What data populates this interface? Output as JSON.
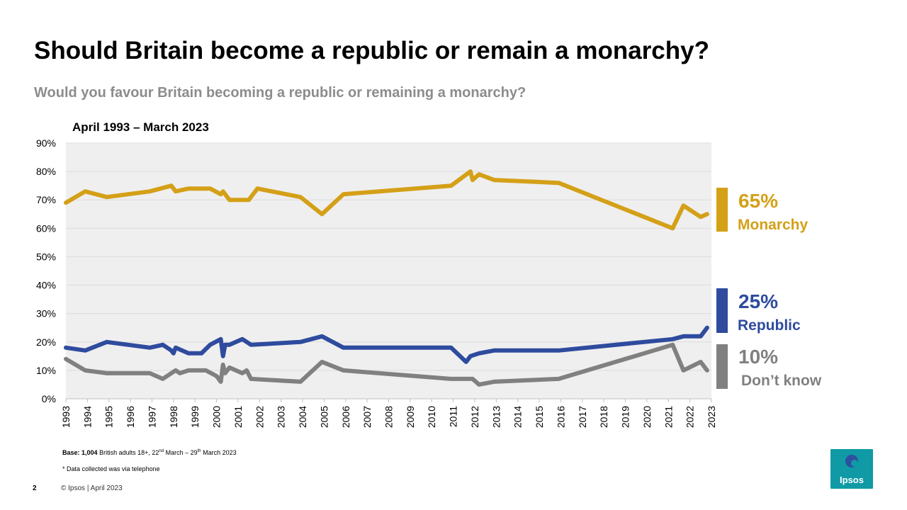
{
  "title": "Should Britain become a republic or remain a monarchy?",
  "subtitle": "Would you favour Britain becoming a republic or remaining a monarchy?",
  "period": "April 1993 – March 2023",
  "colors": {
    "monarchy": "#d4a017",
    "republic": "#2e4b9e",
    "dont_know": "#808080",
    "plot_bg": "#efefef",
    "grid": "#dcdcdc",
    "brand": "#0f9aa5"
  },
  "chart_data": {
    "type": "line",
    "title": "April 1993 – March 2023",
    "xlabel": "",
    "ylabel": "",
    "xlim": [
      1993,
      2023
    ],
    "ylim": [
      0,
      90
    ],
    "y_ticks": [
      0,
      10,
      20,
      30,
      40,
      50,
      60,
      70,
      80,
      90
    ],
    "y_tick_labels": [
      "0%",
      "10%",
      "20%",
      "30%",
      "40%",
      "50%",
      "60%",
      "70%",
      "80%",
      "90%"
    ],
    "x_tick_labels": [
      "1993",
      "1994",
      "1995",
      "1996",
      "1997",
      "1998",
      "1999",
      "2000",
      "2001",
      "2002",
      "2003",
      "2004",
      "2005",
      "2006",
      "2007",
      "2008",
      "2009",
      "2010",
      "2011",
      "2012",
      "2013",
      "2014",
      "2015",
      "2016",
      "2017",
      "2018",
      "2019",
      "2020",
      "2021",
      "2022",
      "2023"
    ],
    "grid": true,
    "series": [
      {
        "name": "Monarchy",
        "color_key": "monarchy",
        "x": [
          1993.0,
          1993.9,
          1994.9,
          1996.9,
          1997.9,
          1998.1,
          1998.7,
          1999.7,
          2000.2,
          2000.3,
          2000.6,
          2001.1,
          2001.5,
          2001.9,
          2003.9,
          2004.9,
          2005.9,
          2010.9,
          2011.8,
          2011.9,
          2012.2,
          2012.9,
          2015.9,
          2021.2,
          2021.7,
          2022.5,
          2022.8
        ],
        "values": [
          69,
          73,
          71,
          73,
          75,
          73,
          74,
          74,
          72,
          73,
          70,
          70,
          70,
          74,
          71,
          65,
          72,
          75,
          80,
          77,
          79,
          77,
          76,
          60,
          68,
          64,
          65
        ]
      },
      {
        "name": "Republic",
        "color_key": "republic",
        "x": [
          1993.0,
          1993.9,
          1994.9,
          1996.9,
          1997.5,
          1997.9,
          1998.0,
          1998.1,
          1998.7,
          1999.3,
          1999.7,
          2000.2,
          2000.3,
          2000.4,
          2000.6,
          2001.2,
          2001.6,
          2003.9,
          2004.9,
          2005.9,
          2010.9,
          2011.6,
          2011.8,
          2012.2,
          2012.9,
          2015.9,
          2021.2,
          2021.7,
          2022.5,
          2022.8
        ],
        "values": [
          18,
          17,
          20,
          18,
          19,
          17,
          16,
          18,
          16,
          16,
          19,
          21,
          15,
          19,
          19,
          21,
          19,
          20,
          22,
          18,
          18,
          13,
          15,
          16,
          17,
          17,
          21,
          22,
          22,
          25
        ]
      },
      {
        "name": "Don't know",
        "color_key": "dont_know",
        "x": [
          1993.0,
          1993.9,
          1994.9,
          1996.9,
          1997.5,
          1998.1,
          1998.3,
          1998.7,
          1999.5,
          2000.0,
          2000.2,
          2000.3,
          2000.4,
          2000.6,
          2001.2,
          2001.4,
          2001.6,
          2003.9,
          2004.9,
          2005.9,
          2010.9,
          2011.9,
          2012.2,
          2012.9,
          2015.9,
          2021.2,
          2021.7,
          2022.5,
          2022.8
        ],
        "values": [
          14,
          10,
          9,
          9,
          7,
          10,
          9,
          10,
          10,
          8,
          6,
          12,
          9,
          11,
          9,
          10,
          7,
          6,
          13,
          10,
          7,
          7,
          5,
          6,
          7,
          19,
          10,
          13,
          10
        ]
      }
    ]
  },
  "legend": {
    "monarchy": {
      "value": "65%",
      "label": "Monarchy"
    },
    "republic": {
      "value": "25%",
      "label": "Republic"
    },
    "dont_know": {
      "value": "10%",
      "label": "Don’t know"
    }
  },
  "footer": {
    "base_label": "Base:",
    "base_n": "1,004",
    "base_desc": "British adults 18+, 22",
    "base_sup1": "nd",
    "base_mid": "March – 29",
    "base_sup2": "th",
    "base_end": "March 2023",
    "note": "* Data collected was via telephone",
    "page_number": "2",
    "copyright": "© Ipsos | April 2023",
    "logo_text": "Ipsos"
  }
}
